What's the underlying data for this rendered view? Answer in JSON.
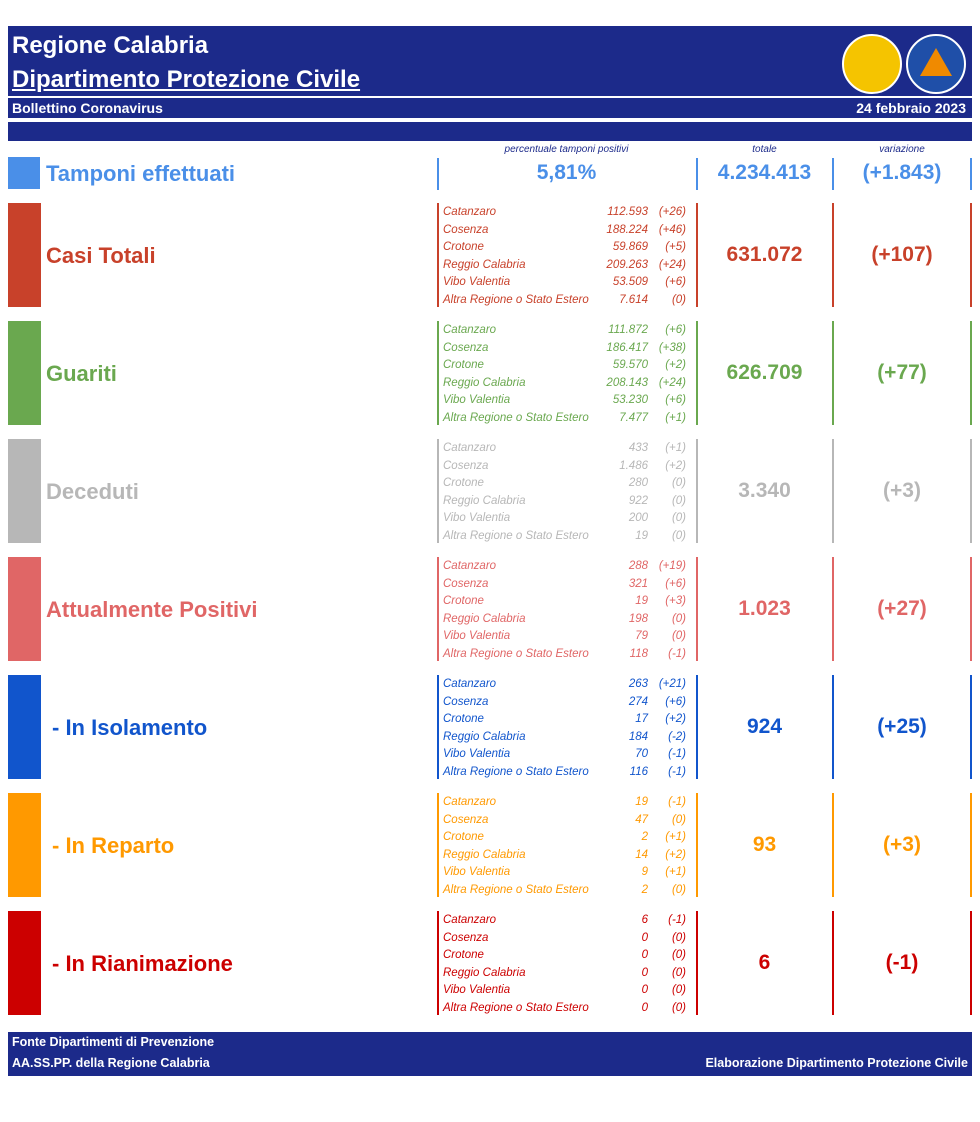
{
  "header": {
    "title_line1": "Regione Calabria",
    "title_line2": "Dipartimento Protezione Civile",
    "bulletin": "Bollettino Coronavirus",
    "date": "24 febbraio 2023"
  },
  "tamponi": {
    "label": "Tamponi effettuati",
    "color": "#4a8fe8",
    "pct_header": "percentuale tamponi positivi",
    "pct": "5,81%",
    "total_header": "totale",
    "total": "4.234.413",
    "var_header": "variazione",
    "variation": "(+1.843)"
  },
  "sections": [
    {
      "label": "Casi Totali",
      "color": "#c8412a",
      "total": "631.072",
      "variation": "(+107)",
      "provinces": [
        {
          "name": "Catanzaro",
          "value": "112.593",
          "change": "(+26)"
        },
        {
          "name": "Cosenza",
          "value": "188.224",
          "change": "(+46)"
        },
        {
          "name": "Crotone",
          "value": "59.869",
          "change": "(+5)"
        },
        {
          "name": "Reggio Calabria",
          "value": "209.263",
          "change": "(+24)"
        },
        {
          "name": "Vibo Valentia",
          "value": "53.509",
          "change": "(+6)"
        },
        {
          "name": "Altra Regione o Stato Estero",
          "value": "7.614",
          "change": "(0)"
        }
      ]
    },
    {
      "label": "Guariti",
      "color": "#6aa84f",
      "total": "626.709",
      "variation": "(+77)",
      "provinces": [
        {
          "name": "Catanzaro",
          "value": "111.872",
          "change": "(+6)"
        },
        {
          "name": "Cosenza",
          "value": "186.417",
          "change": "(+38)"
        },
        {
          "name": "Crotone",
          "value": "59.570",
          "change": "(+2)"
        },
        {
          "name": "Reggio Calabria",
          "value": "208.143",
          "change": "(+24)"
        },
        {
          "name": "Vibo Valentia",
          "value": "53.230",
          "change": "(+6)"
        },
        {
          "name": "Altra Regione o Stato Estero",
          "value": "7.477",
          "change": "(+1)"
        }
      ]
    },
    {
      "label": "Deceduti",
      "color": "#b7b7b7",
      "total": "3.340",
      "variation": "(+3)",
      "provinces": [
        {
          "name": "Catanzaro",
          "value": "433",
          "change": "(+1)"
        },
        {
          "name": "Cosenza",
          "value": "1.486",
          "change": "(+2)"
        },
        {
          "name": "Crotone",
          "value": "280",
          "change": "(0)"
        },
        {
          "name": "Reggio Calabria",
          "value": "922",
          "change": "(0)"
        },
        {
          "name": "Vibo Valentia",
          "value": "200",
          "change": "(0)"
        },
        {
          "name": "Altra Regione o Stato Estero",
          "value": "19",
          "change": "(0)"
        }
      ]
    },
    {
      "label": "Attualmente Positivi",
      "color": "#e06666",
      "total": "1.023",
      "variation": "(+27)",
      "provinces": [
        {
          "name": "Catanzaro",
          "value": "288",
          "change": "(+19)"
        },
        {
          "name": "Cosenza",
          "value": "321",
          "change": "(+6)"
        },
        {
          "name": "Crotone",
          "value": "19",
          "change": "(+3)"
        },
        {
          "name": "Reggio Calabria",
          "value": "198",
          "change": "(0)"
        },
        {
          "name": "Vibo Valentia",
          "value": "79",
          "change": "(0)"
        },
        {
          "name": "Altra Regione o Stato Estero",
          "value": "118",
          "change": "(-1)"
        }
      ]
    },
    {
      "label": "- In Isolamento",
      "color": "#1155cc",
      "total": "924",
      "variation": "(+25)",
      "provinces": [
        {
          "name": "Catanzaro",
          "value": "263",
          "change": "(+21)"
        },
        {
          "name": "Cosenza",
          "value": "274",
          "change": "(+6)"
        },
        {
          "name": "Crotone",
          "value": "17",
          "change": "(+2)"
        },
        {
          "name": "Reggio Calabria",
          "value": "184",
          "change": "(-2)"
        },
        {
          "name": "Vibo Valentia",
          "value": "70",
          "change": "(-1)"
        },
        {
          "name": "Altra Regione o Stato Estero",
          "value": "116",
          "change": "(-1)"
        }
      ]
    },
    {
      "label": "- In Reparto",
      "color": "#ff9900",
      "total": "93",
      "variation": "(+3)",
      "provinces": [
        {
          "name": "Catanzaro",
          "value": "19",
          "change": "(-1)"
        },
        {
          "name": "Cosenza",
          "value": "47",
          "change": "(0)"
        },
        {
          "name": "Crotone",
          "value": "2",
          "change": "(+1)"
        },
        {
          "name": "Reggio Calabria",
          "value": "14",
          "change": "(+2)"
        },
        {
          "name": "Vibo Valentia",
          "value": "9",
          "change": "(+1)"
        },
        {
          "name": "Altra Regione o Stato Estero",
          "value": "2",
          "change": "(0)"
        }
      ]
    },
    {
      "label": "- In Rianimazione",
      "color": "#cc0000",
      "total": "6",
      "variation": "(-1)",
      "provinces": [
        {
          "name": "Catanzaro",
          "value": "6",
          "change": "(-1)"
        },
        {
          "name": "Cosenza",
          "value": "0",
          "change": "(0)"
        },
        {
          "name": "Crotone",
          "value": "0",
          "change": "(0)"
        },
        {
          "name": "Reggio Calabria",
          "value": "0",
          "change": "(0)"
        },
        {
          "name": "Vibo Valentia",
          "value": "0",
          "change": "(0)"
        },
        {
          "name": "Altra Regione o Stato Estero",
          "value": "0",
          "change": "(0)"
        }
      ]
    }
  ],
  "footer": {
    "left_line1": "Fonte Dipartimenti di Prevenzione",
    "left_line2": "AA.SS.PP.  della Regione Calabria",
    "right": "Elaborazione Dipartimento Protezione Civile"
  }
}
